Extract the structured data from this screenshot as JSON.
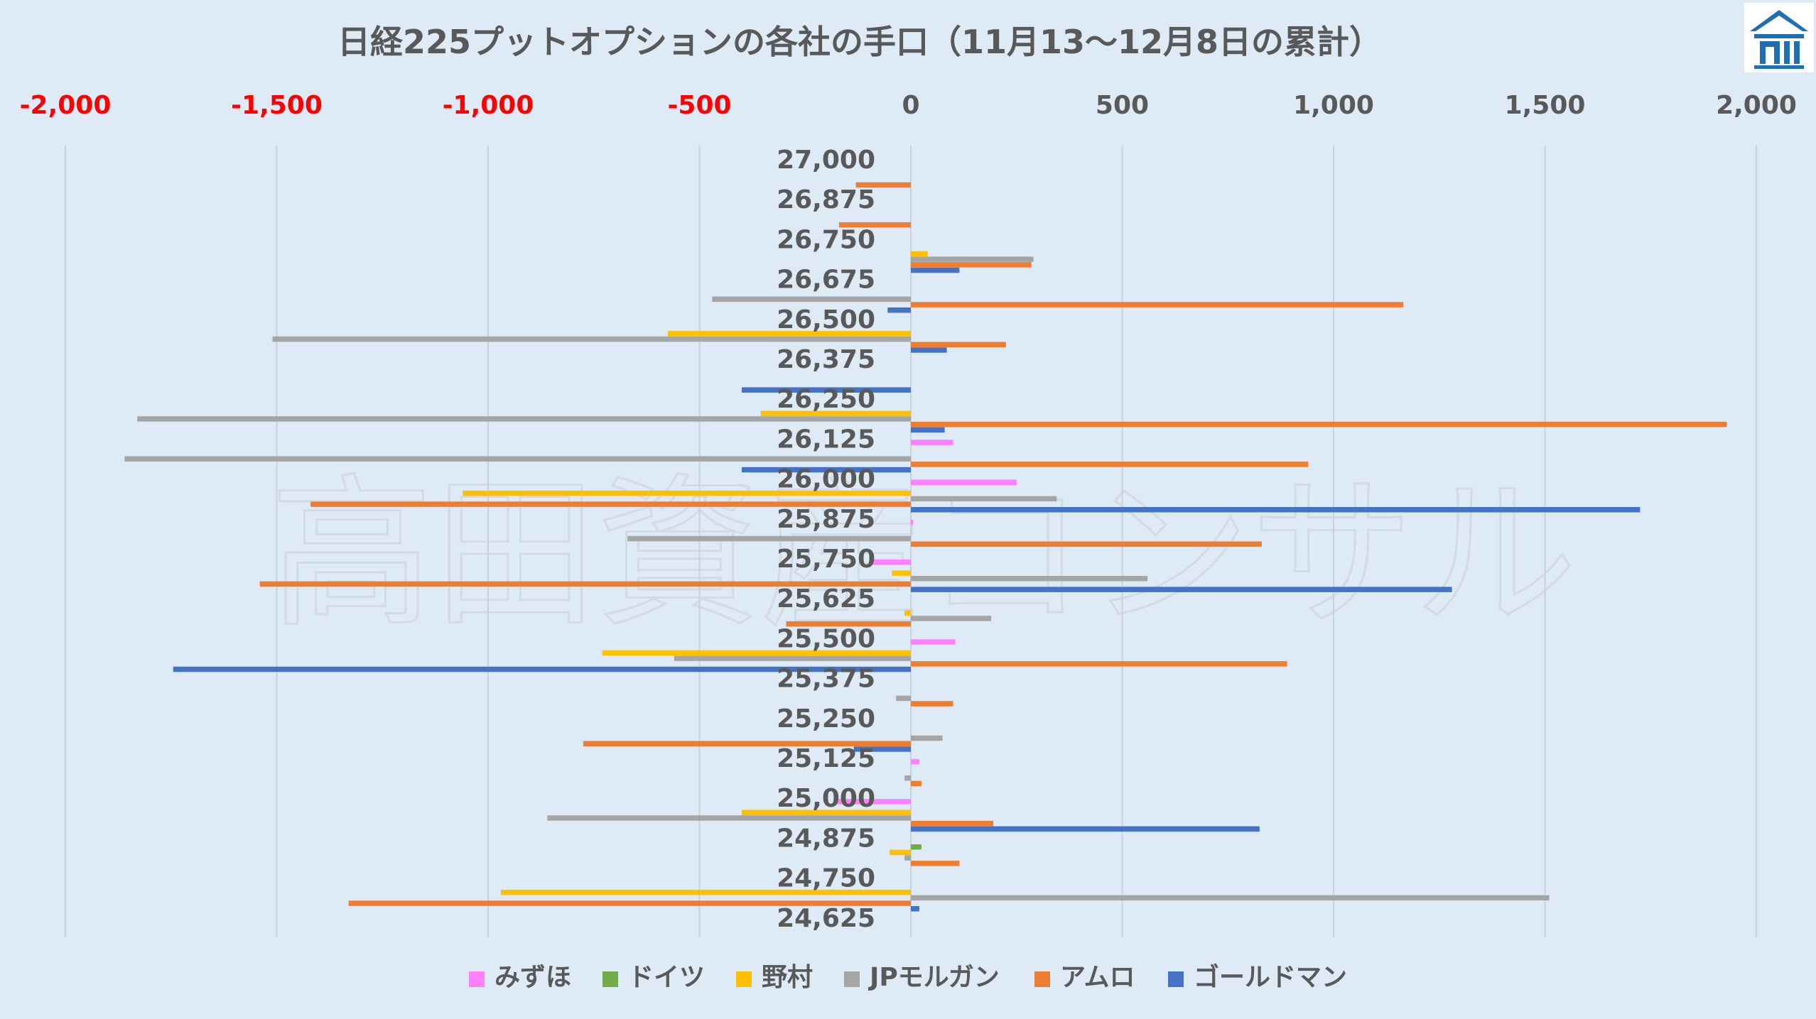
{
  "chart_data": {
    "type": "bar",
    "orientation": "horizontal",
    "title": "日経225プットオプションの各社の手口（11月13～12月8日の累計）",
    "xlim": [
      -2000,
      2000
    ],
    "xticks": [
      "-2,000",
      "-1,500",
      "-1,000",
      "-500",
      "0",
      "500",
      "1,000",
      "1,500",
      "2,000"
    ],
    "xtick_values": [
      -2000,
      -1500,
      -1000,
      -500,
      0,
      500,
      1000,
      1500,
      2000
    ],
    "negative_tick_color": "#ff0000",
    "positive_tick_color": "#595959",
    "grid": true,
    "legend_position": "bottom",
    "categories": [
      "27,000",
      "26,875",
      "26,750",
      "26,675",
      "26,500",
      "26,375",
      "26,250",
      "26,125",
      "26,000",
      "25,875",
      "25,750",
      "25,625",
      "25,500",
      "25,375",
      "25,250",
      "25,125",
      "25,000",
      "24,875",
      "24,750",
      "24,625"
    ],
    "series": [
      {
        "name": "みずほ",
        "color": "#ff7fff",
        "values": [
          0,
          0,
          0,
          0,
          0,
          0,
          0,
          100,
          250,
          5,
          -95,
          0,
          105,
          0,
          0,
          20,
          -180,
          0,
          0,
          0
        ]
      },
      {
        "name": "ドイツ",
        "color": "#70ad47",
        "values": [
          0,
          0,
          0,
          0,
          0,
          0,
          0,
          0,
          0,
          0,
          0,
          0,
          0,
          0,
          0,
          0,
          0,
          25,
          0,
          0
        ]
      },
      {
        "name": "野村",
        "color": "#ffc000",
        "values": [
          0,
          0,
          40,
          0,
          -575,
          0,
          -355,
          0,
          -1060,
          0,
          -45,
          -15,
          -730,
          0,
          0,
          0,
          -400,
          -50,
          -970,
          0
        ]
      },
      {
        "name": "JPモルガン",
        "color": "#a5a5a5",
        "values": [
          0,
          0,
          290,
          -470,
          -1510,
          0,
          -1830,
          -1860,
          345,
          -670,
          560,
          190,
          -560,
          -35,
          75,
          -15,
          -860,
          -15,
          1510,
          0
        ]
      },
      {
        "name": "アムロ",
        "color": "#ed7d31",
        "values": [
          -130,
          -170,
          285,
          1165,
          225,
          0,
          1930,
          940,
          -1420,
          830,
          -1540,
          -295,
          890,
          100,
          -775,
          25,
          195,
          115,
          -1330,
          0
        ]
      },
      {
        "name": "ゴールドマン",
        "color": "#4472c4",
        "values": [
          0,
          0,
          115,
          -55,
          85,
          -400,
          80,
          -400,
          1725,
          0,
          1280,
          0,
          -1745,
          0,
          -135,
          0,
          825,
          0,
          20,
          0
        ]
      }
    ]
  },
  "watermark": "高田資産コンサル",
  "logo": {
    "name": "building-logo-icon",
    "color": "#1f6fb2"
  }
}
